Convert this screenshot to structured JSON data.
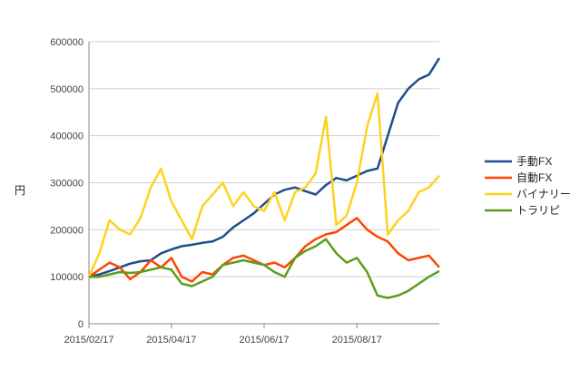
{
  "chart_data": {
    "type": "line",
    "ylabel": "円",
    "ylim": [
      0,
      600000
    ],
    "y_ticks": [
      "0",
      "100000",
      "200000",
      "300000",
      "400000",
      "500000",
      "600000"
    ],
    "x_tick_labels": [
      "2015/02/17",
      "2015/04/17",
      "2015/06/17",
      "2015/08/17"
    ],
    "grid": "horizontal",
    "legend_position": "right",
    "x": [
      "02/17",
      "02/24",
      "03/03",
      "03/10",
      "03/17",
      "03/24",
      "03/31",
      "04/07",
      "04/14",
      "04/21",
      "04/28",
      "05/05",
      "05/12",
      "05/19",
      "05/26",
      "06/02",
      "06/09",
      "06/16",
      "06/23",
      "06/30",
      "07/07",
      "07/14",
      "07/21",
      "07/28",
      "08/04",
      "08/11",
      "08/18",
      "08/25",
      "09/01",
      "09/08",
      "09/15",
      "09/22",
      "09/29",
      "10/06",
      "10/13"
    ],
    "series": [
      {
        "name": "手動FX",
        "color": "#1f4e8c",
        "values": [
          100000,
          105000,
          112000,
          120000,
          128000,
          133000,
          135000,
          150000,
          158000,
          165000,
          168000,
          172000,
          175000,
          185000,
          205000,
          220000,
          235000,
          255000,
          275000,
          285000,
          290000,
          282000,
          275000,
          295000,
          310000,
          305000,
          315000,
          325000,
          330000,
          400000,
          470000,
          500000,
          520000,
          530000,
          565000
        ]
      },
      {
        "name": "自動FX",
        "color": "#ff4500",
        "values": [
          100000,
          115000,
          130000,
          120000,
          95000,
          110000,
          135000,
          120000,
          140000,
          100000,
          90000,
          110000,
          105000,
          125000,
          140000,
          145000,
          135000,
          125000,
          130000,
          120000,
          140000,
          165000,
          180000,
          190000,
          195000,
          210000,
          225000,
          200000,
          185000,
          175000,
          150000,
          135000,
          140000,
          145000,
          120000
        ]
      },
      {
        "name": "バイナリー",
        "color": "#ffd21f",
        "values": [
          100000,
          150000,
          220000,
          200000,
          190000,
          225000,
          290000,
          330000,
          260000,
          220000,
          180000,
          250000,
          275000,
          300000,
          250000,
          280000,
          250000,
          240000,
          280000,
          220000,
          280000,
          290000,
          320000,
          440000,
          210000,
          230000,
          300000,
          420000,
          490000,
          190000,
          220000,
          240000,
          280000,
          290000,
          315000
        ]
      },
      {
        "name": "トラリピ",
        "color": "#5a9e1f",
        "values": [
          100000,
          100000,
          105000,
          110000,
          108000,
          110000,
          115000,
          120000,
          115000,
          85000,
          80000,
          90000,
          100000,
          125000,
          130000,
          135000,
          130000,
          125000,
          110000,
          100000,
          140000,
          155000,
          165000,
          180000,
          150000,
          130000,
          140000,
          110000,
          60000,
          55000,
          60000,
          70000,
          85000,
          100000,
          112000
        ]
      }
    ]
  }
}
